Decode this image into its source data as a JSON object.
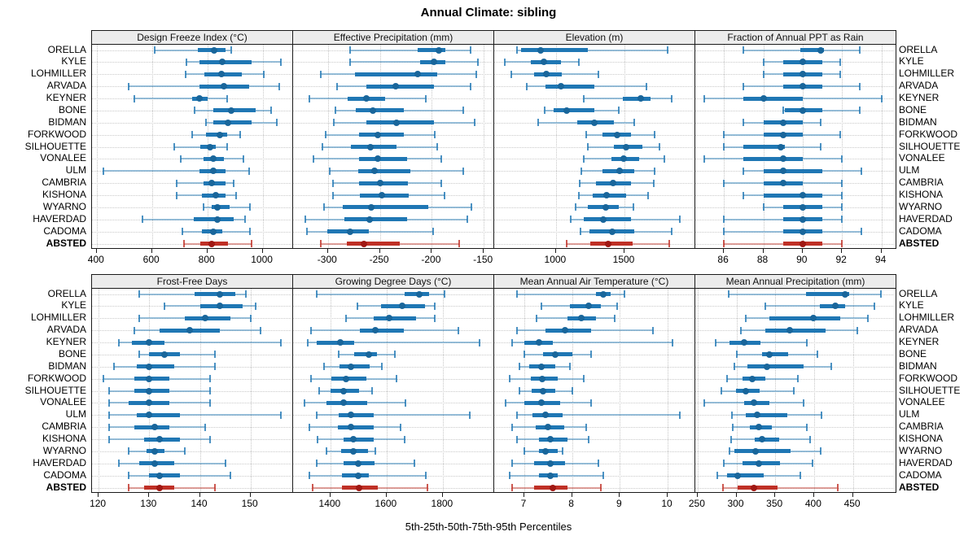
{
  "title": "Annual Climate: sibling",
  "caption": "5th-25th-50th-75th-95th Percentiles",
  "sites": [
    "ORELLA",
    "KYLE",
    "LOHMILLER",
    "ARVADA",
    "KEYNER",
    "BONE",
    "BIDMAN",
    "FORKWOOD",
    "SILHOUETTE",
    "VONALEE",
    "ULM",
    "CAMBRIA",
    "KISHONA",
    "WYARNO",
    "HAVERDAD",
    "CADOMA",
    "ABSTED"
  ],
  "highlight_site": "ABSTED",
  "colors": {
    "normal": "#1f77b4",
    "normal_dot": "#19669b",
    "normal_whisker": "rgba(31,119,180,0.45)",
    "normal_cap": "rgba(31,119,180,0.8)",
    "highlight": "#bf3026",
    "highlight_dot": "#a01813",
    "highlight_whisker": "rgba(191,48,38,0.45)",
    "highlight_cap": "rgba(191,48,38,0.8)",
    "strip_bg": "#ececec",
    "grid": "#c6c6c6",
    "border": "#1a1a1a"
  },
  "chart_data": {
    "type": "trellis-percentile-dotplot",
    "percentiles": [
      5,
      25,
      50,
      75,
      95
    ],
    "panels": [
      {
        "title": "Design Freeze Index (°C)",
        "grid_row": 0,
        "grid_col": 0,
        "xlim": [
          383,
          1110
        ],
        "ticks": [
          400,
          600,
          800,
          1000
        ],
        "values": {
          "ORELLA": [
            610,
            765,
            825,
            865,
            885
          ],
          "KYLE": [
            725,
            770,
            855,
            960,
            1065
          ],
          "LOHMILLER": [
            720,
            790,
            850,
            925,
            1005
          ],
          "ARVADA": [
            515,
            770,
            860,
            950,
            1060
          ],
          "KEYNER": [
            535,
            745,
            770,
            800,
            870
          ],
          "BONE": [
            755,
            820,
            885,
            975,
            1030
          ],
          "BIDMAN": [
            795,
            820,
            875,
            960,
            1050
          ],
          "FORKWOOD": [
            745,
            795,
            845,
            870,
            920
          ],
          "SILHOUETTE": [
            680,
            775,
            810,
            830,
            870
          ],
          "VONALEE": [
            705,
            785,
            820,
            860,
            930
          ],
          "ULM": [
            425,
            770,
            820,
            865,
            950
          ],
          "CAMBRIA": [
            690,
            785,
            815,
            865,
            895
          ],
          "KISHONA": [
            690,
            780,
            830,
            865,
            905
          ],
          "WYARNO": [
            785,
            815,
            835,
            880,
            955
          ],
          "HAVERDAD": [
            565,
            750,
            835,
            895,
            935
          ],
          "CADOMA": [
            710,
            780,
            820,
            855,
            955
          ],
          "ABSTED": [
            715,
            775,
            815,
            875,
            960
          ]
        }
      },
      {
        "title": "Effective Precipitation (mm)",
        "grid_row": 0,
        "grid_col": 1,
        "xlim": [
          -333.5,
          -140
        ],
        "ticks": [
          -300,
          -250,
          -200,
          -150
        ],
        "values": {
          "ORELLA": [
            -279,
            -214,
            -193,
            -187,
            -163
          ],
          "KYLE": [
            -279,
            -211,
            -198,
            -187,
            -156
          ],
          "LOHMILLER": [
            -307,
            -274,
            -214,
            -195,
            -157
          ],
          "ARVADA": [
            -291,
            -263,
            -235,
            -198,
            -163
          ],
          "KEYNER": [
            -318,
            -281,
            -263,
            -245,
            -206
          ],
          "BONE": [
            -293,
            -273,
            -257,
            -227,
            -170
          ],
          "BIDMAN": [
            -294,
            -263,
            -234,
            -198,
            -159
          ],
          "FORKWOOD": [
            -302,
            -270,
            -252,
            -227,
            -197
          ],
          "SILHOUETTE": [
            -305,
            -278,
            -259,
            -234,
            -195
          ],
          "VONALEE": [
            -314,
            -270,
            -252,
            -224,
            -191
          ],
          "ULM": [
            -298,
            -271,
            -255,
            -221,
            -170
          ],
          "CAMBRIA": [
            -295,
            -270,
            -250,
            -223,
            -191
          ],
          "KISHONA": [
            -295,
            -269,
            -248,
            -222,
            -188
          ],
          "WYARNO": [
            -304,
            -286,
            -258,
            -203,
            -162
          ],
          "HAVERDAD": [
            -322,
            -284,
            -260,
            -224,
            -166
          ],
          "CADOMA": [
            -320,
            -301,
            -279,
            -261,
            -199
          ],
          "ABSTED": [
            -307,
            -282,
            -265,
            -231,
            -174
          ]
        }
      },
      {
        "title": "Elevation (m)",
        "grid_row": 0,
        "grid_col": 2,
        "xlim": [
          548,
          2018
        ],
        "ticks": [
          1000,
          1500
        ],
        "values": {
          "ORELLA": [
            715,
            745,
            885,
            1230,
            1815
          ],
          "KYLE": [
            625,
            815,
            910,
            1035,
            1165
          ],
          "LOHMILLER": [
            675,
            840,
            930,
            1045,
            1310
          ],
          "ARVADA": [
            785,
            925,
            1035,
            1280,
            1660
          ],
          "KEYNER": [
            1200,
            1490,
            1620,
            1690,
            1845
          ],
          "BONE": [
            915,
            980,
            1080,
            1280,
            1460
          ],
          "BIDMAN": [
            870,
            1155,
            1280,
            1420,
            1570
          ],
          "FORKWOOD": [
            1220,
            1340,
            1445,
            1550,
            1720
          ],
          "SILHOUETTE": [
            1230,
            1420,
            1510,
            1630,
            1755
          ],
          "VONALEE": [
            1200,
            1405,
            1495,
            1610,
            1790
          ],
          "ULM": [
            1185,
            1337,
            1465,
            1570,
            1720
          ],
          "CAMBRIA": [
            1175,
            1290,
            1415,
            1550,
            1715
          ],
          "KISHONA": [
            1165,
            1270,
            1370,
            1515,
            1670
          ],
          "WYARNO": [
            1140,
            1230,
            1365,
            1460,
            1565
          ],
          "HAVERDAD": [
            1105,
            1200,
            1345,
            1545,
            1905
          ],
          "CADOMA": [
            1180,
            1245,
            1410,
            1570,
            1845
          ],
          "ABSTED": [
            1075,
            1250,
            1380,
            1560,
            1825
          ]
        }
      },
      {
        "title": "Fraction of Annual PPT as Rain",
        "grid_row": 0,
        "grid_col": 3,
        "xlim": [
          84.55,
          94.76
        ],
        "ticks": [
          86,
          88,
          90,
          92,
          94
        ],
        "values": {
          "ORELLA": [
            87,
            89.9,
            90.9,
            91.1,
            92.9
          ],
          "KYLE": [
            88,
            89,
            90,
            91,
            91.9
          ],
          "LOHMILLER": [
            88,
            89,
            90,
            91,
            91.9
          ],
          "ARVADA": [
            87,
            89,
            90,
            91,
            92.9
          ],
          "KEYNER": [
            85,
            87,
            88,
            90,
            94
          ],
          "BONE": [
            89,
            89.1,
            90,
            91,
            92.9
          ],
          "BIDMAN": [
            87,
            88,
            89,
            90,
            90.9
          ],
          "FORKWOOD": [
            86,
            88,
            89,
            90,
            91.9
          ],
          "SILHOUETTE": [
            86,
            87,
            88.9,
            89.1,
            90.9
          ],
          "VONALEE": [
            85,
            87,
            89,
            90,
            92
          ],
          "ULM": [
            87,
            88,
            89,
            91,
            93
          ],
          "CAMBRIA": [
            86,
            88,
            89,
            90,
            92
          ],
          "KISHONA": [
            87,
            88,
            90,
            91,
            92
          ],
          "WYARNO": [
            88,
            89,
            90,
            91,
            92
          ],
          "HAVERDAD": [
            86,
            89,
            90,
            91,
            92
          ],
          "CADOMA": [
            86,
            89,
            90,
            91,
            93
          ],
          "ABSTED": [
            86,
            89,
            90,
            91,
            92
          ]
        }
      },
      {
        "title": "Frost-Free Days",
        "grid_row": 1,
        "grid_col": 0,
        "xlim": [
          118.7,
          158.4
        ],
        "ticks": [
          120,
          130,
          140,
          150
        ],
        "values": {
          "ORELLA": [
            128,
            139,
            144,
            147,
            149
          ],
          "KYLE": [
            133,
            140,
            144,
            148.5,
            151
          ],
          "LOHMILLER": [
            128,
            137,
            141,
            146,
            150
          ],
          "ARVADA": [
            127,
            132,
            138,
            144,
            152
          ],
          "KEYNER": [
            124,
            126.5,
            130,
            133,
            156
          ],
          "BONE": [
            128,
            130,
            133,
            136,
            143
          ],
          "BIDMAN": [
            123,
            127.5,
            130,
            135,
            143
          ],
          "FORKWOOD": [
            121,
            127,
            130,
            134,
            142
          ],
          "SILHOUETTE": [
            122,
            127,
            130,
            134,
            142
          ],
          "VONALEE": [
            122,
            126,
            130,
            134,
            142
          ],
          "ULM": [
            122,
            127.5,
            130,
            136,
            156
          ],
          "CAMBRIA": [
            122,
            127,
            131,
            134,
            141
          ],
          "KISHONA": [
            122,
            129,
            132,
            136,
            142
          ],
          "WYARNO": [
            126,
            129.5,
            131,
            133,
            137
          ],
          "HAVERDAD": [
            124,
            128,
            131,
            135,
            145
          ],
          "CADOMA": [
            126,
            130,
            132,
            136,
            146
          ],
          "ABSTED": [
            126,
            129,
            132,
            135,
            143
          ]
        }
      },
      {
        "title": "Growing Degree Days (°C)",
        "grid_row": 1,
        "grid_col": 1,
        "xlim": [
          1267,
          1983
        ],
        "ticks": [
          1400,
          1600,
          1800
        ],
        "values": {
          "ORELLA": [
            1350,
            1665,
            1715,
            1750,
            1805
          ],
          "KYLE": [
            1495,
            1580,
            1655,
            1735,
            1770
          ],
          "LOHMILLER": [
            1455,
            1555,
            1610,
            1705,
            1770
          ],
          "ARVADA": [
            1330,
            1505,
            1560,
            1660,
            1855
          ],
          "KEYNER": [
            1320,
            1350,
            1435,
            1485,
            1930
          ],
          "BONE": [
            1430,
            1485,
            1537,
            1567,
            1630
          ],
          "BIDMAN": [
            1378,
            1432,
            1472,
            1540,
            1583
          ],
          "FORKWOOD": [
            1330,
            1403,
            1455,
            1528,
            1635
          ],
          "SILHOUETTE": [
            1360,
            1400,
            1448,
            1503,
            1548
          ],
          "VONALEE": [
            1306,
            1386,
            1448,
            1532,
            1668
          ],
          "ULM": [
            1350,
            1430,
            1472,
            1555,
            1895
          ],
          "CAMBRIA": [
            1325,
            1426,
            1474,
            1555,
            1650
          ],
          "KISHONA": [
            1355,
            1448,
            1482,
            1555,
            1665
          ],
          "WYARNO": [
            1385,
            1439,
            1482,
            1535,
            1561
          ],
          "HAVERDAD": [
            1350,
            1448,
            1500,
            1557,
            1700
          ],
          "CADOMA": [
            1325,
            1440,
            1500,
            1538,
            1740
          ],
          "ABSTED": [
            1335,
            1442,
            1503,
            1569,
            1745
          ]
        }
      },
      {
        "title": "Mean Annual Air Temperature (°C)",
        "grid_row": 1,
        "grid_col": 2,
        "xlim": [
          6.37,
          10.58
        ],
        "ticks": [
          7,
          8,
          9,
          10
        ],
        "values": {
          "ORELLA": [
            6.85,
            8.5,
            8.65,
            8.8,
            9.1
          ],
          "KYLE": [
            7.35,
            7.95,
            8.35,
            8.6,
            8.95
          ],
          "LOHMILLER": [
            7.25,
            7.9,
            8.2,
            8.5,
            8.9
          ],
          "ARVADA": [
            6.85,
            7.45,
            7.85,
            8.4,
            9.7
          ],
          "KEYNER": [
            6.75,
            7.0,
            7.3,
            7.6,
            10.1
          ],
          "BONE": [
            7.0,
            7.4,
            7.65,
            8.0,
            8.4
          ],
          "BIDMAN": [
            6.9,
            7.1,
            7.35,
            7.65,
            7.95
          ],
          "FORKWOOD": [
            6.7,
            7.13,
            7.38,
            7.7,
            8.25
          ],
          "SILHOUETTE": [
            6.9,
            7.15,
            7.4,
            7.65,
            8.0
          ],
          "VONALEE": [
            6.6,
            7.0,
            7.35,
            7.75,
            8.4
          ],
          "ULM": [
            6.85,
            7.17,
            7.45,
            7.8,
            10.25
          ],
          "CAMBRIA": [
            6.75,
            7.23,
            7.5,
            7.83,
            8.3
          ],
          "KISHONA": [
            6.85,
            7.3,
            7.55,
            7.9,
            8.35
          ],
          "WYARNO": [
            7.0,
            7.3,
            7.45,
            7.7,
            7.8
          ],
          "HAVERDAD": [
            6.75,
            7.2,
            7.55,
            7.85,
            8.55
          ],
          "CADOMA": [
            6.7,
            7.3,
            7.55,
            7.7,
            8.65
          ],
          "ABSTED": [
            6.75,
            7.2,
            7.6,
            7.9,
            8.6
          ]
        }
      },
      {
        "title": "Mean Annual Precipitation (mm)",
        "grid_row": 1,
        "grid_col": 3,
        "xlim": [
          247,
          506
        ],
        "ticks": [
          250,
          300,
          350,
          400,
          450
        ],
        "values": {
          "ORELLA": [
            290,
            390,
            440,
            445,
            486
          ],
          "KYLE": [
            337,
            407,
            427,
            440,
            478
          ],
          "LOHMILLER": [
            312,
            342,
            399,
            434,
            469
          ],
          "ARVADA": [
            306,
            337,
            369,
            415,
            456
          ],
          "KEYNER": [
            273,
            291,
            310,
            331,
            391
          ],
          "BONE": [
            300,
            333,
            342,
            367,
            404
          ],
          "BIDMAN": [
            297,
            314,
            339,
            386,
            422
          ],
          "FORKWOOD": [
            288,
            308,
            320,
            337,
            379
          ],
          "SILHOUETTE": [
            281,
            299,
            312,
            330,
            374
          ],
          "VONALEE": [
            259,
            310,
            322,
            342,
            386
          ],
          "ULM": [
            294,
            312,
            327,
            365,
            410
          ],
          "CAMBRIA": [
            295,
            317,
            329,
            346,
            391
          ],
          "KISHONA": [
            293,
            323,
            333,
            355,
            395
          ],
          "WYARNO": [
            291,
            297,
            325,
            370,
            408
          ],
          "HAVERDAD": [
            284,
            308,
            329,
            356,
            398
          ],
          "CADOMA": [
            275,
            288,
            301,
            335,
            382
          ],
          "ABSTED": [
            283,
            301,
            322,
            353,
            430
          ]
        }
      }
    ]
  }
}
